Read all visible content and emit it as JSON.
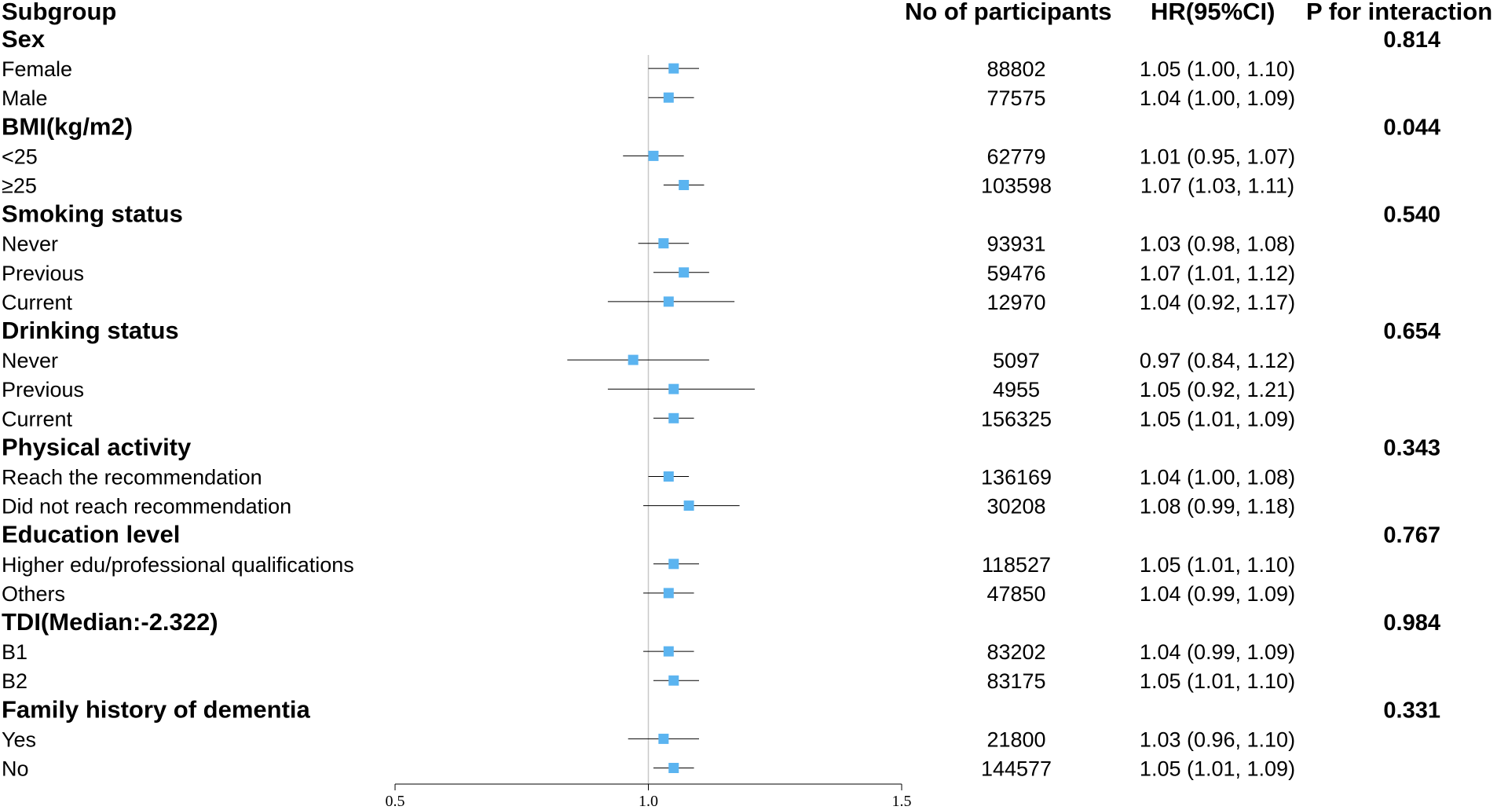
{
  "headers": {
    "subgroup": "Subgroup",
    "participants": "No of participants",
    "hr": "HR(95%CI)",
    "p_interaction": "P for interaction"
  },
  "colors": {
    "marker": "#5bb4f0",
    "line": "#000000",
    "ref_line": "#c8c8c8"
  },
  "chart_data": {
    "type": "forest",
    "reference_value": 1.0,
    "xlim": [
      0.5,
      1.5
    ],
    "x_ticks": [
      "0.5",
      "1.0",
      "1.5"
    ],
    "groups": [
      {
        "label": "Sex",
        "p": "0.814",
        "rows": [
          {
            "label": "Female",
            "n": "88802",
            "hr_text": "1.05 (1.00, 1.10)",
            "hr": 1.05,
            "lo": 1.0,
            "hi": 1.1
          },
          {
            "label": "Male",
            "n": "77575",
            "hr_text": "1.04 (1.00, 1.09)",
            "hr": 1.04,
            "lo": 1.0,
            "hi": 1.09
          }
        ]
      },
      {
        "label": "BMI(kg/m2)",
        "p": "0.044",
        "rows": [
          {
            "label": "<25",
            "n": "62779",
            "hr_text": "1.01 (0.95, 1.07)",
            "hr": 1.01,
            "lo": 0.95,
            "hi": 1.07
          },
          {
            "label": "≥25",
            "n": "103598",
            "hr_text": "1.07 (1.03, 1.11)",
            "hr": 1.07,
            "lo": 1.03,
            "hi": 1.11
          }
        ]
      },
      {
        "label": "Smoking status",
        "p": "0.540",
        "rows": [
          {
            "label": "Never",
            "n": "93931",
            "hr_text": "1.03 (0.98, 1.08)",
            "hr": 1.03,
            "lo": 0.98,
            "hi": 1.08
          },
          {
            "label": "Previous",
            "n": "59476",
            "hr_text": "1.07 (1.01, 1.12)",
            "hr": 1.07,
            "lo": 1.01,
            "hi": 1.12
          },
          {
            "label": "Current",
            "n": "12970",
            "hr_text": "1.04 (0.92, 1.17)",
            "hr": 1.04,
            "lo": 0.92,
            "hi": 1.17
          }
        ]
      },
      {
        "label": "Drinking status",
        "p": "0.654",
        "rows": [
          {
            "label": "Never",
            "n": "5097",
            "hr_text": "0.97 (0.84, 1.12)",
            "hr": 0.97,
            "lo": 0.84,
            "hi": 1.12
          },
          {
            "label": "Previous",
            "n": "4955",
            "hr_text": "1.05 (0.92, 1.21)",
            "hr": 1.05,
            "lo": 0.92,
            "hi": 1.21
          },
          {
            "label": "Current",
            "n": "156325",
            "hr_text": "1.05 (1.01, 1.09)",
            "hr": 1.05,
            "lo": 1.01,
            "hi": 1.09
          }
        ]
      },
      {
        "label": "Physical activity",
        "p": "0.343",
        "rows": [
          {
            "label": "Reach the recommendation",
            "n": "136169",
            "hr_text": "1.04 (1.00, 1.08)",
            "hr": 1.04,
            "lo": 1.0,
            "hi": 1.08
          },
          {
            "label": "Did not reach recommendation",
            "n": "30208",
            "hr_text": "1.08 (0.99, 1.18)",
            "hr": 1.08,
            "lo": 0.99,
            "hi": 1.18
          }
        ]
      },
      {
        "label": "Education level",
        "p": "0.767",
        "rows": [
          {
            "label": "Higher edu/professional qualifications",
            "n": "118527",
            "hr_text": "1.05 (1.01, 1.10)",
            "hr": 1.05,
            "lo": 1.01,
            "hi": 1.1
          },
          {
            "label": "Others",
            "n": "47850",
            "hr_text": "1.04 (0.99, 1.09)",
            "hr": 1.04,
            "lo": 0.99,
            "hi": 1.09
          }
        ]
      },
      {
        "label": "TDI(Median:-2.322)",
        "p": "0.984",
        "rows": [
          {
            "label": "B1",
            "n": "83202",
            "hr_text": "1.04 (0.99, 1.09)",
            "hr": 1.04,
            "lo": 0.99,
            "hi": 1.09
          },
          {
            "label": "B2",
            "n": "83175",
            "hr_text": "1.05 (1.01, 1.10)",
            "hr": 1.05,
            "lo": 1.01,
            "hi": 1.1
          }
        ]
      },
      {
        "label": "Family history of dementia",
        "p": "0.331",
        "rows": [
          {
            "label": "Yes",
            "n": "21800",
            "hr_text": "1.03 (0.96, 1.10)",
            "hr": 1.03,
            "lo": 0.96,
            "hi": 1.1
          },
          {
            "label": "No",
            "n": "144577",
            "hr_text": "1.05 (1.01, 1.09)",
            "hr": 1.05,
            "lo": 1.01,
            "hi": 1.09
          }
        ]
      }
    ]
  }
}
